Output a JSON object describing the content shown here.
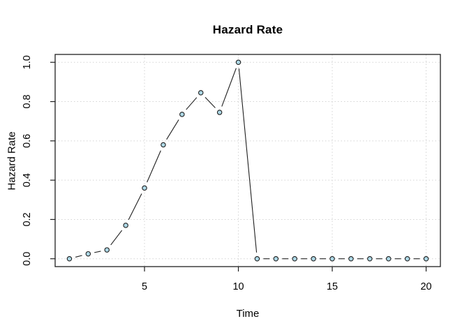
{
  "chart_data": {
    "type": "line",
    "title": "Hazard Rate",
    "xlabel": "Time",
    "ylabel": "Hazard Rate",
    "x": [
      1,
      2,
      3,
      4,
      5,
      6,
      7,
      8,
      9,
      10,
      11,
      12,
      13,
      14,
      15,
      16,
      17,
      18,
      19,
      20
    ],
    "values": [
      0.0,
      0.025,
      0.045,
      0.17,
      0.36,
      0.58,
      0.735,
      0.845,
      0.745,
      1.0,
      0.0,
      0.0,
      0.0,
      0.0,
      0.0,
      0.0,
      0.0,
      0.0,
      0.0,
      0.0
    ],
    "xticks": [
      5,
      10,
      15,
      20
    ],
    "xtick_labels": [
      "5",
      "10",
      "15",
      "20"
    ],
    "yticks": [
      0.0,
      0.2,
      0.4,
      0.6,
      0.8,
      1.0
    ],
    "ytick_labels": [
      "0.0",
      "0.2",
      "0.4",
      "0.6",
      "0.8",
      "1.0"
    ],
    "xlim": [
      0.24,
      20.76
    ],
    "ylim": [
      -0.04,
      1.04
    ],
    "grid": true,
    "legend_position": "none",
    "marker": "filled-circle",
    "line_style": "points-and-segments",
    "colors": {
      "point_fill": "#ADD8E6",
      "point_stroke": "#1f1f1f",
      "line": "#1f1f1f",
      "grid": "#d4d4d4",
      "box": "#1f1f1f",
      "text": "#000000"
    }
  }
}
